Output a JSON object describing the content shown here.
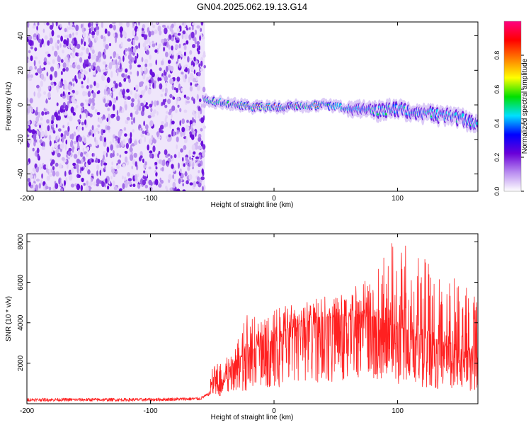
{
  "title": "GN04.2025.062.19.13.G14",
  "chart_data": [
    {
      "type": "heatmap",
      "xlabel": "Height of straight line (km)",
      "ylabel": "Frequency (Hz)",
      "xlim": [
        -200,
        165
      ],
      "ylim": [
        -50,
        48
      ],
      "x_ticks": [
        -200,
        -100,
        0,
        100
      ],
      "y_ticks": [
        -40,
        -20,
        0,
        20,
        40
      ],
      "colorbar": {
        "label": "Normalized spectral amplitude",
        "range": [
          0,
          1
        ],
        "ticks": [
          "0.0",
          "0.2",
          "0.4",
          "0.6",
          "0.8"
        ],
        "colors": [
          "#ffffff",
          "#b98cf0",
          "#6a00d8",
          "#0000ff",
          "#00e0ff",
          "#00e000",
          "#ffff00",
          "#ff7f00",
          "#ff0000",
          "#ff0080"
        ]
      },
      "noise_region_x": [
        -200,
        -56
      ],
      "signal_ridge": {
        "x": [
          -56,
          -40,
          -20,
          0,
          20,
          40,
          60,
          80,
          100,
          120,
          140,
          160
        ],
        "freq": [
          3,
          1,
          -1,
          -1,
          -1,
          0,
          -2,
          -3,
          -3,
          -5,
          -6,
          -10
        ]
      },
      "grid": false
    },
    {
      "type": "line",
      "xlabel": "Height of straight line (km)",
      "ylabel": "SNR (10 * v/v)",
      "xlim": [
        -200,
        165
      ],
      "ylim": [
        0,
        8400
      ],
      "x_ticks": [
        -200,
        -100,
        0,
        100
      ],
      "y_ticks": [
        2000,
        4000,
        6000,
        8000
      ],
      "series": [
        {
          "color": "#ff2020",
          "x": [
            -200,
            -150,
            -100,
            -60,
            -52,
            -50,
            -40,
            -30,
            -20,
            -10,
            0,
            10,
            20,
            30,
            40,
            50,
            60,
            70,
            80,
            90,
            100,
            110,
            120,
            130,
            140,
            150,
            160,
            165
          ],
          "y": [
            200,
            200,
            200,
            250,
            500,
            1200,
            1500,
            2200,
            2500,
            3000,
            3100,
            3600,
            3900,
            4200,
            4300,
            4200,
            4300,
            4400,
            4300,
            4100,
            3800,
            3600,
            3300,
            3000,
            2800,
            2600,
            2400,
            2300
          ],
          "upper_envelope": [
            300,
            300,
            350,
            400,
            1400,
            2200,
            2700,
            3300,
            4800,
            4200,
            4600,
            4900,
            5000,
            5200,
            5400,
            5300,
            5600,
            6200,
            6500,
            8400,
            7900,
            7800,
            7500,
            6800,
            6200,
            6300,
            5500,
            5200
          ]
        }
      ],
      "grid": false
    }
  ]
}
